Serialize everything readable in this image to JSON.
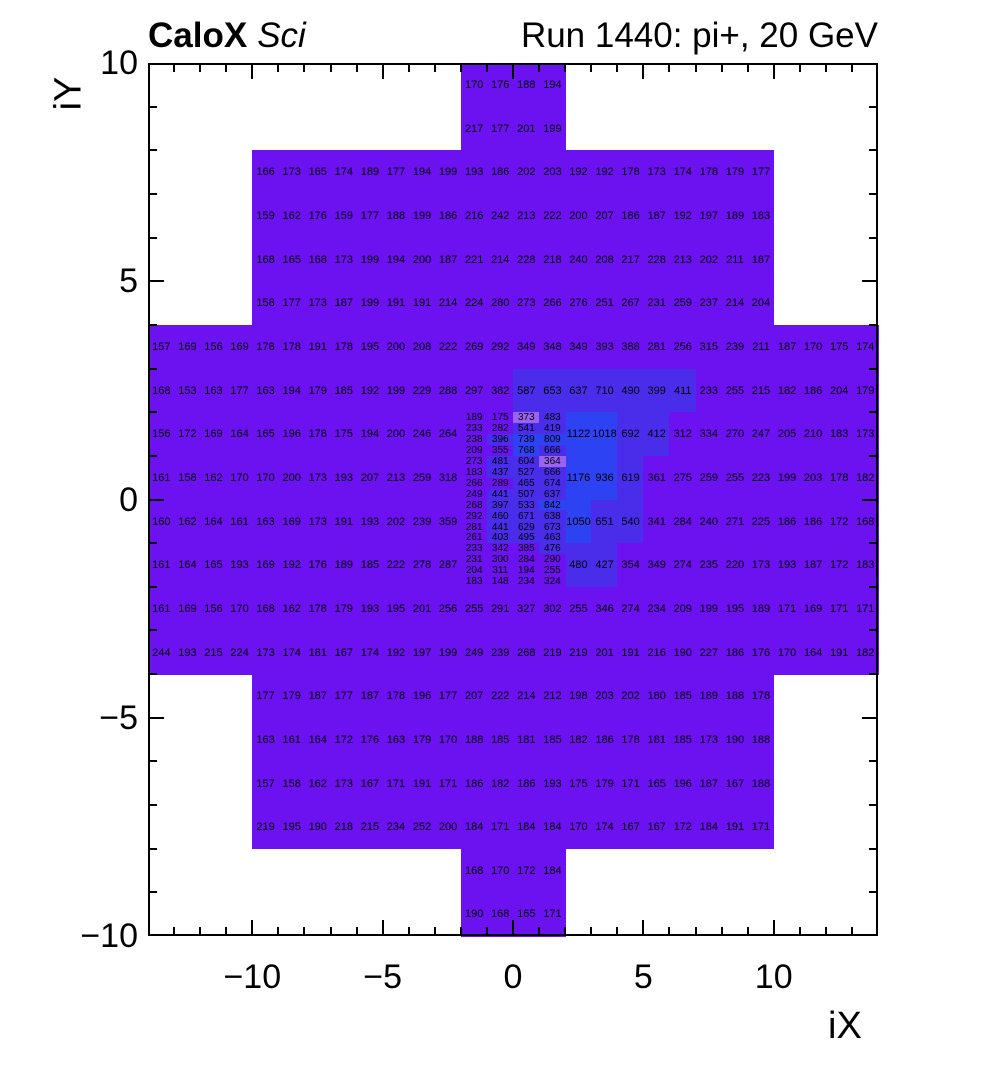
{
  "chart_data": {
    "type": "heatmap",
    "title_bold": "CaloX",
    "title_italic": "Sci",
    "title_right": "Run 1440: pi+, 20 GeV",
    "xlabel": "iX",
    "ylabel": "iY",
    "x_range": [
      -14,
      14
    ],
    "y_range": [
      -10,
      10
    ],
    "x_ticks": [
      -10,
      -5,
      0,
      5,
      10
    ],
    "y_ticks": [
      -10,
      -5,
      0,
      5,
      10
    ],
    "grid": false,
    "legend": "none",
    "palette": [
      {
        "min": 0,
        "max": 361,
        "color": "#6C11EF"
      },
      {
        "min": 362,
        "max": 375,
        "color": "#9B63F1"
      },
      {
        "min": 376,
        "max": 394,
        "color": "#6C11EF"
      },
      {
        "min": 395,
        "max": 725,
        "color": "#4A2CEB"
      },
      {
        "min": 726,
        "max": 99999,
        "color": "#2D42F2"
      }
    ],
    "rows": [
      {
        "iy": 9.5,
        "x0": -2,
        "values": [
          170,
          176,
          188,
          194
        ]
      },
      {
        "iy": 8.5,
        "x0": -2,
        "values": [
          217,
          177,
          201,
          199
        ]
      },
      {
        "iy": 7.5,
        "x0": -10,
        "values": [
          166,
          173,
          165,
          174,
          189,
          177,
          194,
          199,
          193,
          186,
          202,
          203,
          192,
          192,
          178,
          173,
          174,
          178,
          179,
          177
        ]
      },
      {
        "iy": 6.5,
        "x0": -10,
        "values": [
          159,
          162,
          176,
          159,
          177,
          188,
          199,
          186,
          216,
          242,
          213,
          222,
          200,
          207,
          186,
          187,
          192,
          197,
          189,
          183
        ]
      },
      {
        "iy": 5.5,
        "x0": -10,
        "values": [
          168,
          165,
          168,
          173,
          199,
          194,
          200,
          187,
          221,
          214,
          228,
          218,
          240,
          208,
          217,
          228,
          213,
          202,
          211,
          187
        ]
      },
      {
        "iy": 4.5,
        "x0": -10,
        "values": [
          158,
          177,
          173,
          187,
          199,
          191,
          191,
          214,
          224,
          280,
          273,
          266,
          276,
          251,
          267,
          231,
          259,
          237,
          214,
          204
        ]
      },
      {
        "iy": 3.5,
        "x0": -14,
        "values": [
          157,
          169,
          156,
          169,
          178,
          178,
          191,
          178,
          195,
          200,
          208,
          222,
          269,
          292,
          349,
          348,
          349,
          393,
          388,
          281,
          256,
          315,
          239,
          211,
          187,
          170,
          175,
          174
        ]
      },
      {
        "iy": 2.5,
        "x0": -14,
        "values": [
          168,
          153,
          163,
          177,
          163,
          194,
          179,
          185,
          192,
          199,
          229,
          288,
          297,
          382,
          587,
          653,
          637,
          710,
          490,
          399,
          411,
          233,
          255,
          215,
          182,
          186,
          204,
          179
        ]
      },
      {
        "iy": 1.5,
        "x0": -14,
        "values": [
          156,
          172,
          169,
          164,
          165,
          196,
          178,
          175,
          194,
          200,
          246,
          264
        ]
      },
      {
        "iy": 1.5,
        "x0": 2,
        "values": [
          1122,
          1018,
          692,
          412,
          312,
          334,
          270,
          247,
          205,
          210,
          183,
          173
        ]
      },
      {
        "iy": 0.5,
        "x0": -14,
        "values": [
          161,
          158,
          162,
          170,
          170,
          200,
          173,
          193,
          207,
          213,
          259,
          318
        ]
      },
      {
        "iy": 0.5,
        "x0": 2,
        "values": [
          1176,
          936,
          619,
          361,
          275,
          259,
          255,
          223,
          199,
          203,
          178,
          182
        ]
      },
      {
        "iy": -0.5,
        "x0": -14,
        "values": [
          160,
          162,
          164,
          161,
          163,
          169,
          173,
          191,
          193,
          202,
          239,
          359
        ]
      },
      {
        "iy": -0.5,
        "x0": 2,
        "values": [
          1050,
          651,
          540,
          341,
          284,
          240,
          271,
          225,
          186,
          186,
          172,
          168
        ]
      },
      {
        "iy": -1.5,
        "x0": -14,
        "values": [
          161,
          164,
          165,
          193,
          169,
          192,
          176,
          189,
          185,
          222,
          278,
          287
        ]
      },
      {
        "iy": -1.5,
        "x0": 2,
        "values": [
          480,
          427,
          354,
          349,
          274,
          235,
          220,
          173,
          193,
          187,
          172,
          183
        ]
      },
      {
        "iy": -2.5,
        "x0": -14,
        "values": [
          161,
          169,
          156,
          170,
          168,
          162,
          178,
          179,
          193,
          195,
          201,
          256,
          255,
          291,
          327,
          302,
          255,
          346,
          274,
          234,
          209,
          199,
          195,
          189,
          171,
          169,
          171,
          171
        ]
      },
      {
        "iy": -3.5,
        "x0": -14,
        "values": [
          244,
          193,
          215,
          224,
          173,
          174,
          181,
          167,
          174,
          192,
          197,
          199,
          249,
          239,
          268,
          219,
          219,
          201,
          191,
          216,
          190,
          227,
          186,
          176,
          170,
          164,
          191,
          182
        ]
      },
      {
        "iy": -4.5,
        "x0": -10,
        "values": [
          177,
          179,
          187,
          177,
          187,
          178,
          196,
          177,
          207,
          222,
          214,
          212,
          198,
          203,
          202,
          180,
          185,
          189,
          188,
          178
        ]
      },
      {
        "iy": -5.5,
        "x0": -10,
        "values": [
          163,
          161,
          164,
          172,
          176,
          163,
          179,
          170,
          188,
          185,
          181,
          185,
          182,
          186,
          178,
          181,
          185,
          173,
          190,
          188
        ]
      },
      {
        "iy": -6.5,
        "x0": -10,
        "values": [
          157,
          158,
          162,
          173,
          167,
          171,
          191,
          171,
          186,
          182,
          186,
          193,
          175,
          179,
          171,
          165,
          196,
          187,
          167,
          188
        ]
      },
      {
        "iy": -7.5,
        "x0": -10,
        "values": [
          219,
          195,
          190,
          218,
          215,
          234,
          252,
          200,
          184,
          171,
          184,
          184,
          170,
          174,
          167,
          167,
          172,
          184,
          191,
          171
        ]
      },
      {
        "iy": -8.5,
        "x0": -2,
        "values": [
          168,
          170,
          172,
          184
        ]
      },
      {
        "iy": -9.5,
        "x0": -2,
        "values": [
          190,
          168,
          165,
          171
        ]
      }
    ],
    "fine_block": {
      "x0": -2,
      "y_top": 2,
      "col_width": 1,
      "row_height": 0.25,
      "values": [
        [
          189,
          175,
          373,
          483
        ],
        [
          233,
          282,
          541,
          419
        ],
        [
          238,
          396,
          739,
          809
        ],
        [
          209,
          355,
          768,
          666
        ],
        [
          273,
          481,
          604,
          364
        ],
        [
          183,
          437,
          527,
          666
        ],
        [
          266,
          289,
          465,
          674
        ],
        [
          249,
          441,
          507,
          637
        ],
        [
          268,
          397,
          533,
          842
        ],
        [
          292,
          460,
          671,
          638
        ],
        [
          281,
          441,
          629,
          673
        ],
        [
          261,
          403,
          495,
          463
        ],
        [
          233,
          342,
          385,
          476
        ],
        [
          231,
          300,
          284,
          290
        ],
        [
          204,
          311,
          194,
          255
        ],
        [
          183,
          148,
          234,
          324
        ]
      ]
    }
  }
}
